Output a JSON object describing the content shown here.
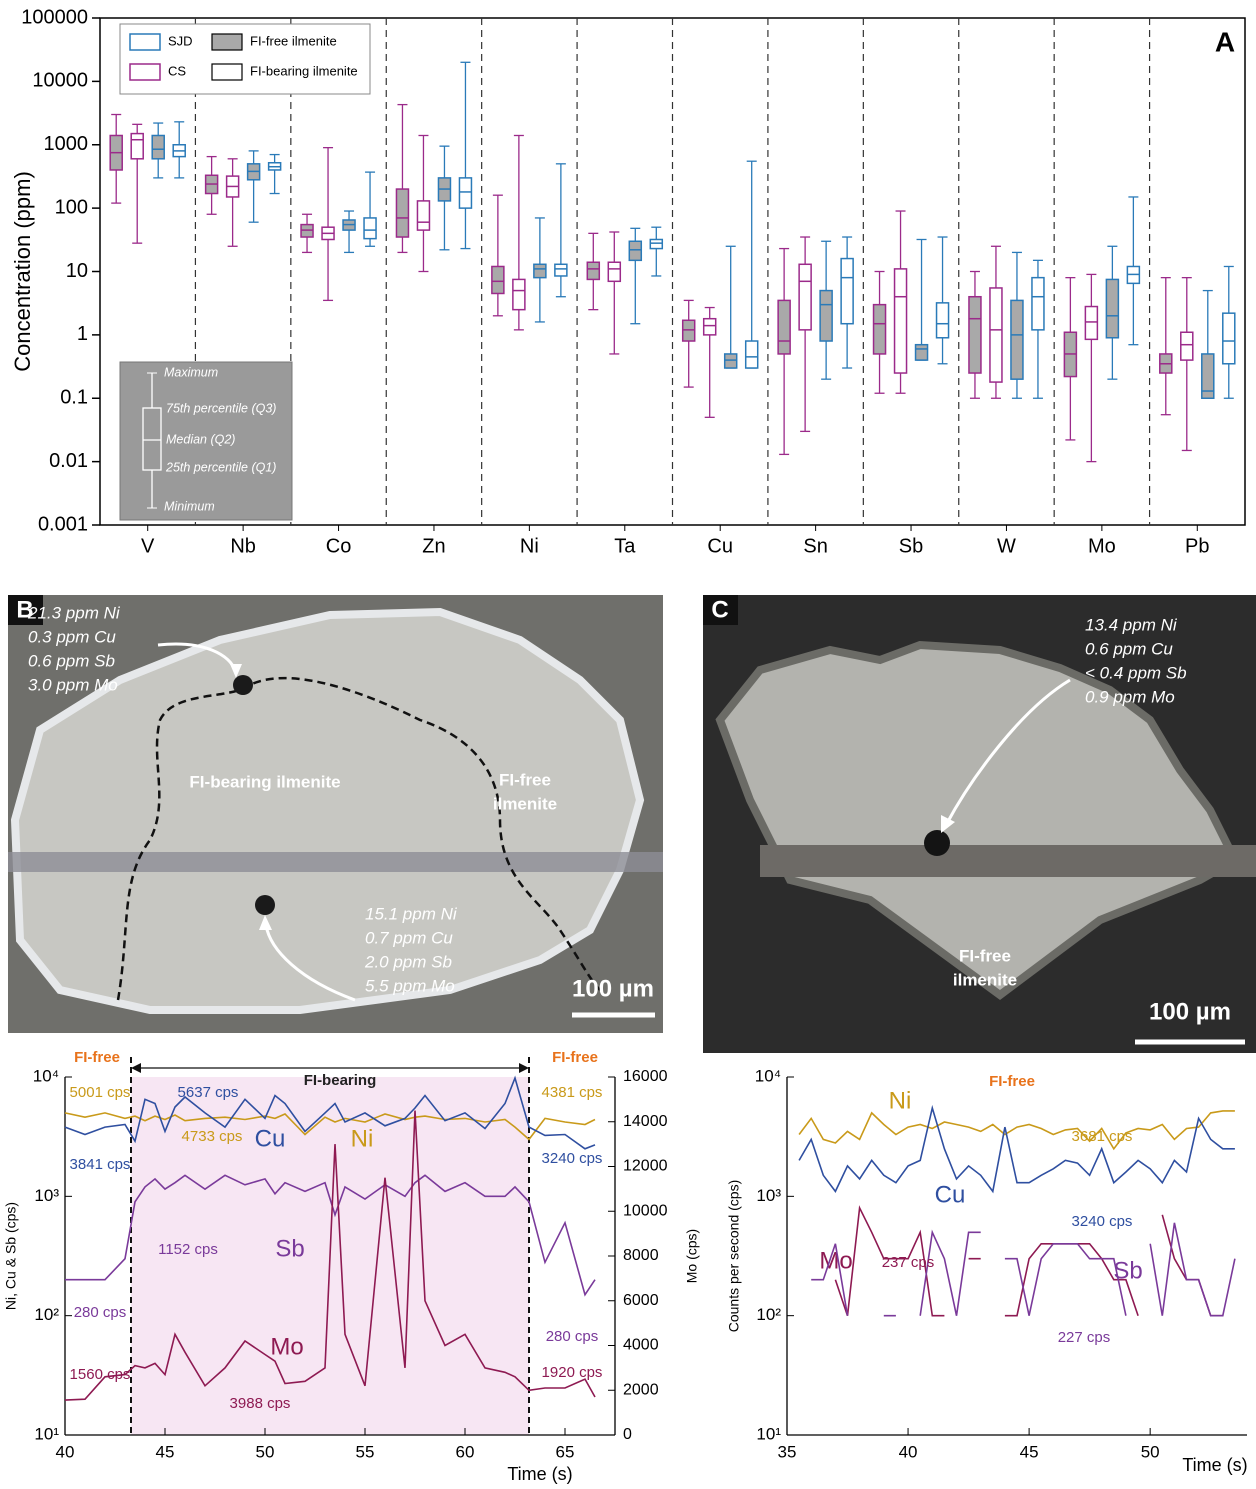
{
  "chart_data": [
    {
      "type": "box",
      "panel": "A",
      "ylabel": "Concentration (ppm)",
      "yscale": "log",
      "ylim": [
        0.001,
        100000
      ],
      "yticks": [
        0.001,
        0.01,
        0.1,
        1,
        10,
        100,
        1000,
        10000,
        100000
      ],
      "categories": [
        "V",
        "Nb",
        "Co",
        "Zn",
        "Ni",
        "Ta",
        "Cu",
        "Sn",
        "Sb",
        "W",
        "Mo",
        "Pb"
      ],
      "fills": [
        {
          "name": "FI-free ilmenite",
          "fill": "#a9a9a9"
        },
        {
          "name": "FI-bearing ilmenite",
          "fill": "#ffffff"
        }
      ],
      "key_labels": [
        "Maximum",
        "75th percentile (Q3)",
        "Median (Q2)",
        "25th percentile (Q1)",
        "Minimum"
      ],
      "series": [
        {
          "name": "SJD",
          "color": "#2a7ab8",
          "boxes": [
            [
              [
                300,
                600,
                850,
                1400,
                2200
              ],
              [
                60,
                280,
                380,
                500,
                800
              ],
              [
                20,
                45,
                55,
                65,
                90
              ],
              [
                22,
                130,
                200,
                300,
                950
              ],
              [
                1.6,
                8,
                11,
                13,
                70
              ],
              [
                1.5,
                15,
                22,
                30,
                48
              ],
              [
                0.3,
                0.3,
                0.4,
                0.5,
                25
              ],
              [
                0.2,
                0.8,
                3,
                5,
                30
              ],
              [
                0.4,
                0.4,
                0.6,
                0.7,
                32
              ],
              [
                0.1,
                0.2,
                1,
                3.5,
                20
              ],
              [
                0.2,
                0.9,
                2,
                7.5,
                25
              ],
              [
                0.1,
                0.1,
                0.13,
                0.5,
                5
              ]
            ],
            [
              [
                300,
                650,
                800,
                1000,
                2300
              ],
              [
                170,
                400,
                450,
                520,
                700
              ],
              [
                25,
                33,
                45,
                70,
                370
              ],
              [
                23,
                100,
                180,
                300,
                20000
              ],
              [
                4,
                8.5,
                11,
                13,
                500
              ],
              [
                8.5,
                23,
                28,
                32,
                50
              ],
              [
                0.3,
                0.3,
                0.45,
                0.8,
                550
              ],
              [
                0.3,
                1.5,
                8,
                16,
                35
              ],
              [
                0.35,
                0.9,
                1.5,
                3.2,
                35
              ],
              [
                0.1,
                1.2,
                4,
                8,
                15
              ],
              [
                0.7,
                6.5,
                9,
                12,
                150
              ],
              [
                0.1,
                0.35,
                0.8,
                2.2,
                12
              ]
            ]
          ]
        },
        {
          "name": "CS",
          "color": "#9b2a8a",
          "boxes": [
            [
              [
                120,
                400,
                750,
                1400,
                3000
              ],
              [
                80,
                170,
                240,
                330,
                650
              ],
              [
                20,
                35,
                45,
                55,
                80
              ],
              [
                20,
                35,
                70,
                200,
                4300
              ],
              [
                2,
                4.5,
                7,
                12,
                160
              ],
              [
                2.5,
                7.5,
                11,
                14,
                40
              ],
              [
                0.15,
                0.8,
                1.2,
                1.7,
                3.5
              ],
              [
                0.013,
                0.5,
                0.8,
                3.5,
                23
              ],
              [
                0.12,
                0.5,
                1.5,
                3,
                10
              ],
              [
                0.1,
                0.25,
                1.8,
                4,
                10
              ],
              [
                0.022,
                0.22,
                0.5,
                1.1,
                8
              ],
              [
                0.055,
                0.25,
                0.35,
                0.5,
                8
              ]
            ],
            [
              [
                28,
                600,
                1200,
                1500,
                2100
              ],
              [
                25,
                150,
                220,
                320,
                600
              ],
              [
                3.5,
                32,
                40,
                50,
                900
              ],
              [
                10,
                45,
                60,
                130,
                1400
              ],
              [
                1.2,
                2.5,
                5,
                7.5,
                1400
              ],
              [
                0.5,
                7,
                11,
                14,
                42
              ],
              [
                0.05,
                1,
                1.4,
                1.8,
                2.7
              ],
              [
                0.03,
                1.2,
                7,
                13,
                35
              ],
              [
                0.12,
                0.25,
                4,
                11,
                90
              ],
              [
                0.1,
                0.18,
                1.2,
                5.5,
                25
              ],
              [
                0.01,
                0.85,
                1.6,
                2.8,
                9
              ],
              [
                0.015,
                0.4,
                0.7,
                1.1,
                8
              ]
            ]
          ]
        }
      ]
    },
    {
      "type": "line",
      "yscale": "log",
      "xlabel": "Time (s)",
      "ylabel": "Ni, Cu & Sb (cps)",
      "y2label": "Mo (cps)",
      "xlim": [
        40,
        67.5
      ],
      "xticks": [
        40,
        45,
        50,
        55,
        60,
        65
      ],
      "ylim": [
        10,
        10000
      ],
      "yticks": [
        {
          "value": 10,
          "label": "10¹"
        },
        {
          "value": 100,
          "label": "10²"
        },
        {
          "value": 1000,
          "label": "10³"
        },
        {
          "value": 10000,
          "label": "10⁴"
        }
      ],
      "y2lim": [
        0,
        16000
      ],
      "y2ticks": [
        0,
        2000,
        4000,
        6000,
        8000,
        10000,
        12000,
        14000,
        16000
      ],
      "shaded": [
        43.3,
        63.2
      ],
      "shade_color": "#f7e6f3",
      "x": [
        40,
        41,
        42,
        43,
        43.5,
        44,
        44.5,
        45,
        45.5,
        46,
        47,
        48,
        49,
        50,
        50.5,
        51,
        52,
        53,
        53.5,
        54,
        55,
        56,
        57,
        57.5,
        58,
        59,
        60,
        61,
        62,
        62.5,
        63.2,
        64,
        65,
        66,
        66.5
      ],
      "series": [
        {
          "name": "Ni",
          "color": "#c99a1a",
          "values": [
            5000,
            4600,
            5000,
            4500,
            4700,
            4300,
            4700,
            4400,
            4800,
            4300,
            4500,
            4600,
            4400,
            4700,
            4500,
            4900,
            3300,
            4600,
            4200,
            4500,
            4200,
            4900,
            4400,
            4600,
            4700,
            4400,
            4500,
            4200,
            4400,
            3800,
            3000,
            4500,
            4200,
            4000,
            4400
          ]
        },
        {
          "name": "Cu",
          "color": "#2f4fa0",
          "values": [
            3800,
            3300,
            3800,
            4000,
            2900,
            6500,
            6000,
            3500,
            5600,
            6800,
            5000,
            3800,
            6500,
            4500,
            7000,
            6000,
            3500,
            5000,
            6000,
            4200,
            5000,
            3900,
            4500,
            5500,
            7000,
            4300,
            5000,
            3700,
            6000,
            9800,
            3800,
            3240,
            3300,
            2500,
            2700
          ]
        },
        {
          "name": "Sb",
          "color": "#7a3a9a",
          "values": [
            200,
            200,
            200,
            300,
            900,
            1200,
            1400,
            1150,
            1300,
            1500,
            1150,
            1500,
            1250,
            1400,
            1050,
            1300,
            1100,
            1300,
            700,
            1200,
            950,
            1250,
            1000,
            1300,
            1500,
            1100,
            1300,
            1000,
            1000,
            1200,
            900,
            280,
            600,
            150,
            200
          ]
        },
        {
          "name": "Mo",
          "color": "#8e1a52",
          "axis": "y2",
          "values": [
            1560,
            1600,
            2600,
            2700,
            3100,
            3000,
            3200,
            2700,
            4500,
            3700,
            2200,
            3000,
            4200,
            3600,
            3300,
            2300,
            2400,
            3000,
            13000,
            4500,
            2200,
            11500,
            3000,
            14500,
            6000,
            4000,
            4500,
            3000,
            2800,
            2600,
            2000,
            2100,
            2100,
            2500,
            1700
          ]
        }
      ],
      "annotations": [
        {
          "text": "FI-free",
          "color": "#e8731c"
        },
        {
          "text": "FI-bearing",
          "color": "#222222"
        },
        {
          "text": "FI-free",
          "color": "#e8731c"
        },
        {
          "text": "5001 cps",
          "color": "#c99a1a"
        },
        {
          "text": "3841 cps",
          "color": "#2f4fa0"
        },
        {
          "text": "5637 cps",
          "color": "#2f4fa0"
        },
        {
          "text": "4733 cps",
          "color": "#c99a1a"
        },
        {
          "text": "4381 cps",
          "color": "#c99a1a"
        },
        {
          "text": "3240 cps",
          "color": "#2f4fa0"
        },
        {
          "text": "1152 cps",
          "color": "#7a3a9a"
        },
        {
          "text": "280 cps",
          "color": "#7a3a9a"
        },
        {
          "text": "280 cps",
          "color": "#7a3a9a"
        },
        {
          "text": "1560 cps",
          "color": "#8e1a52"
        },
        {
          "text": "1920 cps",
          "color": "#8e1a52"
        },
        {
          "text": "3988 cps",
          "color": "#8e1a52"
        }
      ]
    },
    {
      "type": "line",
      "yscale": "log",
      "xlabel": "Time (s)",
      "ylabel": "Counts per second (cps)",
      "xlim": [
        35,
        54
      ],
      "xticks": [
        35,
        40,
        45,
        50
      ],
      "ylim": [
        10,
        10000
      ],
      "yticks": [
        {
          "value": 10,
          "label": "10¹"
        },
        {
          "value": 100,
          "label": "10²"
        },
        {
          "value": 1000,
          "label": "10³"
        },
        {
          "value": 10000,
          "label": "10⁴"
        }
      ],
      "x": [
        35.5,
        36,
        36.5,
        37,
        37.5,
        38,
        38.5,
        39,
        39.5,
        40,
        40.5,
        41,
        41.5,
        42,
        42.5,
        43,
        43.5,
        44,
        44.5,
        45,
        45.5,
        46,
        46.5,
        47,
        47.5,
        48,
        48.5,
        49,
        49.5,
        50,
        50.5,
        51,
        51.5,
        52,
        52.5,
        53,
        53.5
      ],
      "series": [
        {
          "name": "Ni",
          "color": "#c99a1a",
          "values": [
            3300,
            4500,
            3000,
            2800,
            3500,
            3000,
            5000,
            4000,
            3300,
            3800,
            4000,
            3700,
            4200,
            4000,
            3800,
            3500,
            4000,
            3300,
            3800,
            4000,
            3700,
            3300,
            3600,
            3700,
            2900,
            3700,
            2500,
            3400,
            3700,
            3600,
            4000,
            3000,
            3700,
            3800,
            5000,
            5200,
            5200
          ]
        },
        {
          "name": "Cu",
          "color": "#2f4fa0",
          "values": [
            2000,
            3000,
            1500,
            1100,
            1800,
            1400,
            2000,
            1500,
            1300,
            1800,
            2000,
            5500,
            2500,
            1400,
            1800,
            1500,
            1100,
            3800,
            1300,
            1300,
            1500,
            1700,
            2000,
            1900,
            1500,
            2500,
            1300,
            1600,
            2000,
            1700,
            1300,
            2000,
            1600,
            4500,
            3000,
            2500,
            2500
          ]
        },
        {
          "name": "Mo",
          "color": "#8e1a52",
          "values": [
            null,
            null,
            null,
            200,
            100,
            800,
            500,
            300,
            300,
            300,
            500,
            100,
            100,
            null,
            300,
            300,
            null,
            100,
            100,
            300,
            400,
            400,
            400,
            400,
            400,
            300,
            200,
            200,
            100,
            null,
            700,
            300,
            200,
            200,
            100,
            100,
            null
          ]
        },
        {
          "name": "Sb",
          "color": "#7a3a9a",
          "values": [
            null,
            200,
            200,
            400,
            100,
            null,
            null,
            100,
            100,
            null,
            100,
            500,
            300,
            100,
            500,
            500,
            null,
            300,
            300,
            100,
            300,
            400,
            400,
            400,
            300,
            300,
            300,
            100,
            null,
            400,
            100,
            600,
            200,
            200,
            100,
            100,
            300
          ]
        }
      ],
      "annotations": [
        {
          "text": "FI-free",
          "color": "#e8731c"
        },
        {
          "text": "3681 cps",
          "color": "#c99a1a"
        },
        {
          "text": "3240 cps",
          "color": "#2f4fa0"
        },
        {
          "text": "237 cps",
          "color": "#8e1a52"
        },
        {
          "text": "227 cps",
          "color": "#7a3a9a"
        }
      ]
    }
  ],
  "micrographs": [
    {
      "panel": "B",
      "notes": [
        [
          "21.3 ppm Ni",
          "0.3 ppm Cu",
          "0.6 ppm Sb",
          "3.0 ppm Mo"
        ],
        [
          "15.1 ppm Ni",
          "0.7 ppm Cu",
          "2.0 ppm Sb",
          "5.5 ppm Mo"
        ]
      ],
      "regions": [
        [
          "FI-bearing ilmenite"
        ],
        [
          "FI-free",
          "ilmenite"
        ]
      ],
      "scale_bar": "100 µm"
    },
    {
      "panel": "C",
      "notes": [
        [
          "13.4 ppm Ni",
          "0.6 ppm Cu",
          "< 0.4 ppm Sb",
          "0.9 ppm Mo"
        ]
      ],
      "regions": [
        [
          "FI-free",
          "ilmenite"
        ]
      ],
      "scale_bar": "100 µm"
    }
  ]
}
